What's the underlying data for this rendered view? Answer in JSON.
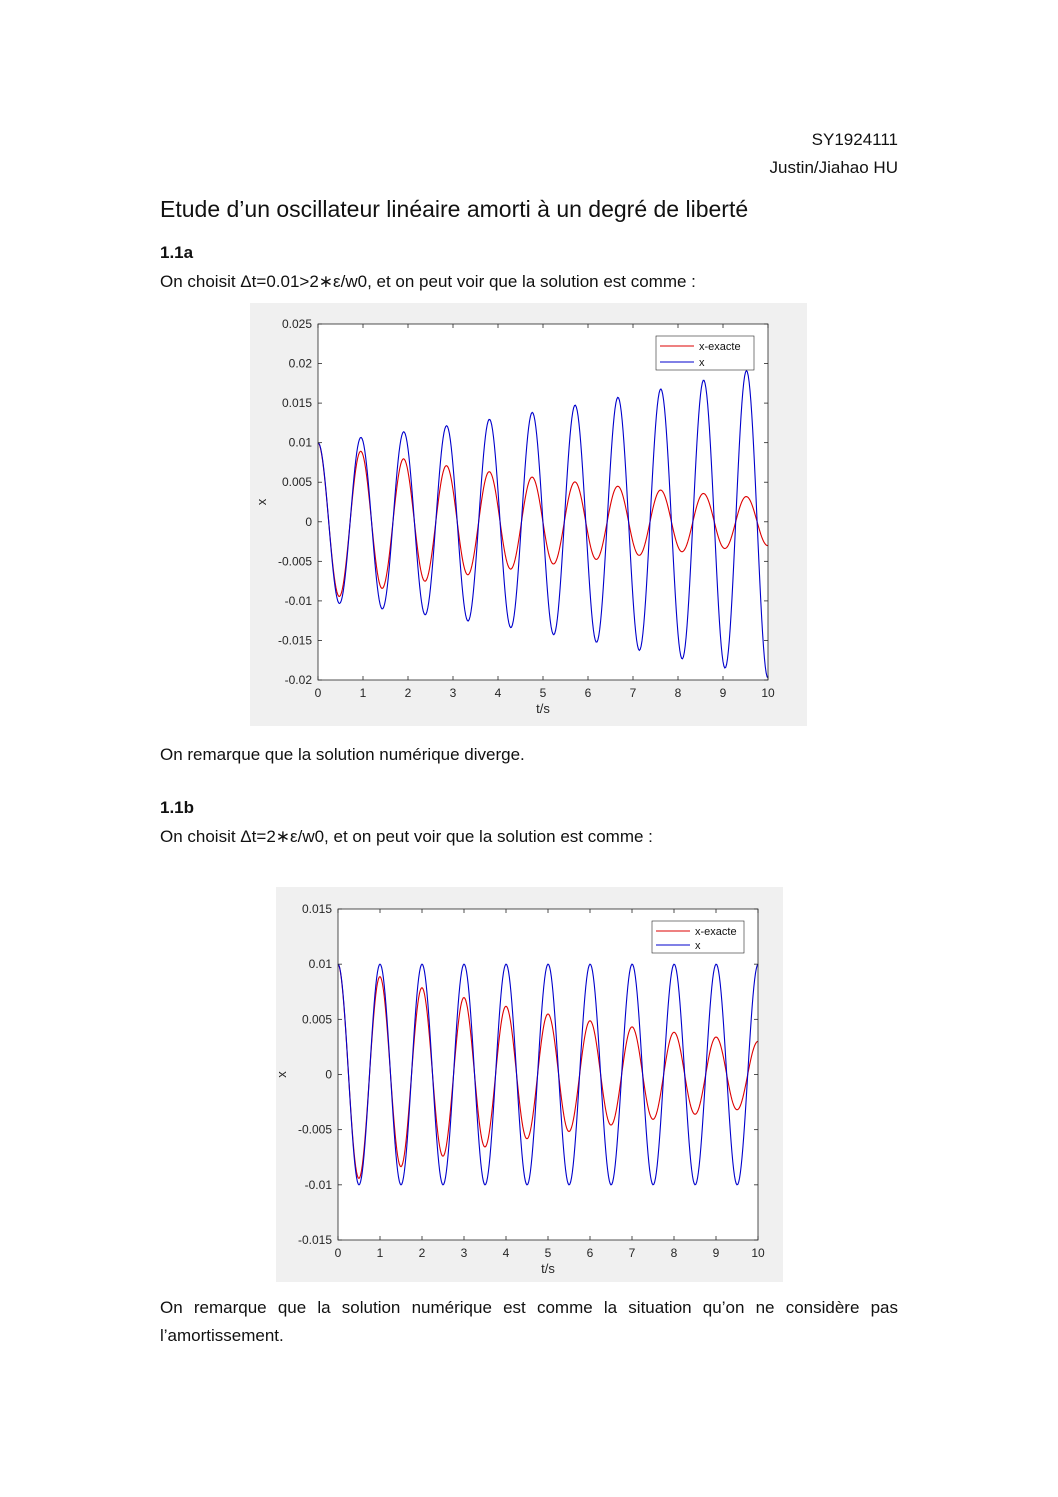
{
  "header": {
    "student_id": "SY1924111",
    "author": "Justin/Jiahao HU"
  },
  "title": "Etude d’un oscillateur linéaire amorti à un degré de liberté",
  "sections": [
    {
      "heading": "1.1a",
      "intro": "On choisit  Δt=0.01>2∗ε/w0, et on peut voir que la solution est comme :",
      "conclusion": "On remarque que la solution numérique diverge."
    },
    {
      "heading": "1.1b",
      "intro": "On choisit  Δt=2∗ε/w0, et on peut voir que la solution est comme :",
      "conclusion": "On remarque que la solution numérique est comme la situation qu’on ne considère pas l’amortissement."
    }
  ],
  "chart_data": [
    {
      "type": "line",
      "xlabel": "t/s",
      "ylabel": "x",
      "xlim": [
        0,
        10
      ],
      "ylim": [
        -0.02,
        0.025
      ],
      "xticks": [
        0,
        1,
        2,
        3,
        4,
        5,
        6,
        7,
        8,
        9,
        10
      ],
      "xtick_labels": [
        "0",
        "1",
        "2",
        "3",
        "4",
        "5",
        "6",
        "7",
        "8",
        "9",
        "10"
      ],
      "yticks": [
        -0.02,
        -0.015,
        -0.01,
        -0.005,
        0,
        0.005,
        0.01,
        0.015,
        0.02,
        0.025
      ],
      "ytick_labels": [
        "-0.02",
        "-0.015",
        "-0.01",
        "-0.005",
        "0",
        "0.005",
        "0.01",
        "0.015",
        "0.02",
        "0.025"
      ],
      "grid": false,
      "legend": "top-right",
      "model": {
        "x0": 0.01,
        "omega": 6.6,
        "phase": 0
      },
      "series": [
        {
          "name": "x-exacte",
          "color": "#dd0000",
          "growth": -0.12
        },
        {
          "name": "x",
          "color": "#0000cc",
          "growth": 0.068
        }
      ],
      "samples": 500
    },
    {
      "type": "line",
      "xlabel": "t/s",
      "ylabel": "x",
      "xlim": [
        0,
        10
      ],
      "ylim": [
        -0.015,
        0.015
      ],
      "xticks": [
        0,
        1,
        2,
        3,
        4,
        5,
        6,
        7,
        8,
        9,
        10
      ],
      "xtick_labels": [
        "0",
        "1",
        "2",
        "3",
        "4",
        "5",
        "6",
        "7",
        "8",
        "9",
        "10"
      ],
      "yticks": [
        -0.015,
        -0.01,
        -0.005,
        0,
        0.005,
        0.01,
        0.015
      ],
      "ytick_labels": [
        "-0.015",
        "-0.01",
        "-0.005",
        "0",
        "0.005",
        "0.01",
        "0.015"
      ],
      "grid": false,
      "legend": "top-right",
      "model": {
        "x0": 0.01,
        "omega": 6.28,
        "phase": 0
      },
      "series": [
        {
          "name": "x-exacte",
          "color": "#dd0000",
          "growth": -0.12
        },
        {
          "name": "x",
          "color": "#0000cc",
          "growth": 0
        }
      ],
      "samples": 500
    }
  ]
}
